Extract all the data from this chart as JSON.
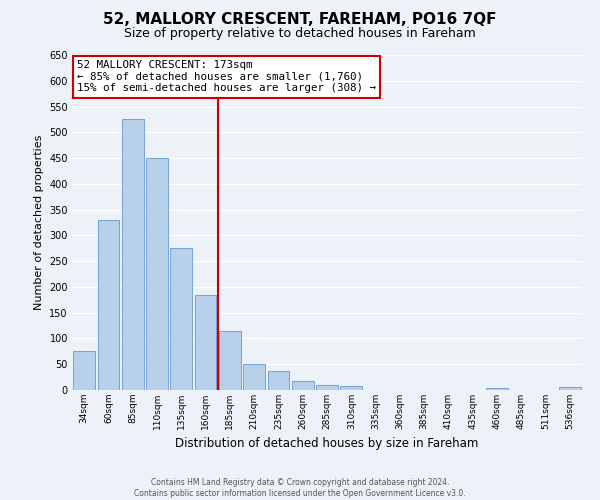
{
  "title": "52, MALLORY CRESCENT, FAREHAM, PO16 7QF",
  "subtitle": "Size of property relative to detached houses in Fareham",
  "xlabel": "Distribution of detached houses by size in Fareham",
  "ylabel": "Number of detached properties",
  "categories": [
    "34sqm",
    "60sqm",
    "85sqm",
    "110sqm",
    "135sqm",
    "160sqm",
    "185sqm",
    "210sqm",
    "235sqm",
    "260sqm",
    "285sqm",
    "310sqm",
    "335sqm",
    "360sqm",
    "385sqm",
    "410sqm",
    "435sqm",
    "460sqm",
    "485sqm",
    "511sqm",
    "536sqm"
  ],
  "values": [
    75,
    330,
    525,
    450,
    275,
    185,
    115,
    50,
    37,
    17,
    10,
    7,
    0,
    0,
    0,
    0,
    0,
    3,
    0,
    0,
    5
  ],
  "bar_color": "#b8d0ea",
  "bar_edge_color": "#6699cc",
  "vline_x": 6,
  "vline_color": "#cc0000",
  "annotation_title": "52 MALLORY CRESCENT: 173sqm",
  "annotation_line1": "← 85% of detached houses are smaller (1,760)",
  "annotation_line2": "15% of semi-detached houses are larger (308) →",
  "annotation_box_color": "#ffffff",
  "annotation_box_edge": "#cc0000",
  "ylim": [
    0,
    650
  ],
  "yticks": [
    0,
    50,
    100,
    150,
    200,
    250,
    300,
    350,
    400,
    450,
    500,
    550,
    600,
    650
  ],
  "footer_line1": "Contains HM Land Registry data © Crown copyright and database right 2024.",
  "footer_line2": "Contains public sector information licensed under the Open Government Licence v3.0.",
  "bg_color": "#edf2f9",
  "grid_color": "#ffffff",
  "fig_width": 6.0,
  "fig_height": 5.0,
  "fig_dpi": 100
}
